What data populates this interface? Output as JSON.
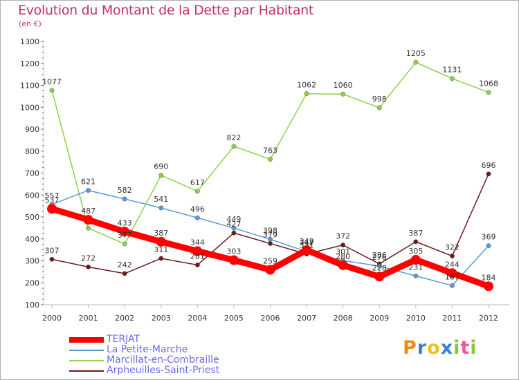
{
  "header": {
    "title": "Evolution du Montant de la Dette par Habitant",
    "subtitle": "(en €)"
  },
  "logo": {
    "text": "Proxiti",
    "colors": [
      "#f08a1c",
      "#3a7fd0",
      "#e8c21c",
      "#3a7fd0",
      "#8fc43a",
      "#e85a9a",
      "#8fc43a"
    ]
  },
  "chart_data": {
    "type": "line",
    "title": "Evolution du Montant de la Dette par Habitant",
    "subtitle": "(en €)",
    "x": [
      2000,
      2001,
      2002,
      2003,
      2004,
      2005,
      2006,
      2007,
      2008,
      2009,
      2010,
      2011,
      2012
    ],
    "ylim": [
      100,
      1300
    ],
    "yticks": [
      100,
      200,
      300,
      400,
      500,
      600,
      700,
      800,
      900,
      1000,
      1100,
      1200,
      1300
    ],
    "grid": false,
    "legend_position": "bottom-left",
    "series": [
      {
        "name": "TERJAT",
        "color": "#ff0000",
        "values": [
          537,
          487,
          433,
          387,
          344,
          303,
          259,
          349,
          280,
          228,
          305,
          244,
          184
        ],
        "labels": [
          "537",
          "487",
          "433",
          "387",
          "344",
          "303",
          "259",
          "349",
          "280",
          "228",
          "305",
          "244",
          "184"
        ]
      },
      {
        "name": "La Petite-Marche",
        "color": "#5b9bd5",
        "values": [
          557,
          621,
          582,
          541,
          496,
          449,
          398,
          342,
          301,
          276,
          231,
          187,
          369
        ],
        "labels": [
          "557",
          "621",
          "582",
          "541",
          "496",
          "449",
          "398",
          "342",
          "301",
          "276",
          "231",
          "187",
          "369"
        ]
      },
      {
        "name": "Marcillat-en-Combraille",
        "color": "#8dd14a",
        "values": [
          1077,
          449,
          377,
          690,
          617,
          822,
          763,
          1062,
          1060,
          998,
          1205,
          1131,
          1068
        ],
        "labels": [
          "1077",
          "",
          "377",
          "690",
          "617",
          "822",
          "763",
          "1062",
          "1060",
          "998",
          "1205",
          "1131",
          "1068"
        ]
      },
      {
        "name": "Arpheuilles-Saint-Priest",
        "color": "#6b1a1a",
        "values": [
          307,
          272,
          242,
          311,
          281,
          427,
          379,
          331,
          372,
          286,
          387,
          322,
          696
        ],
        "labels": [
          "307",
          "272",
          "242",
          "311",
          "281",
          "427",
          "379",
          "331",
          "372",
          "286",
          "387",
          "322",
          "696"
        ]
      }
    ]
  }
}
